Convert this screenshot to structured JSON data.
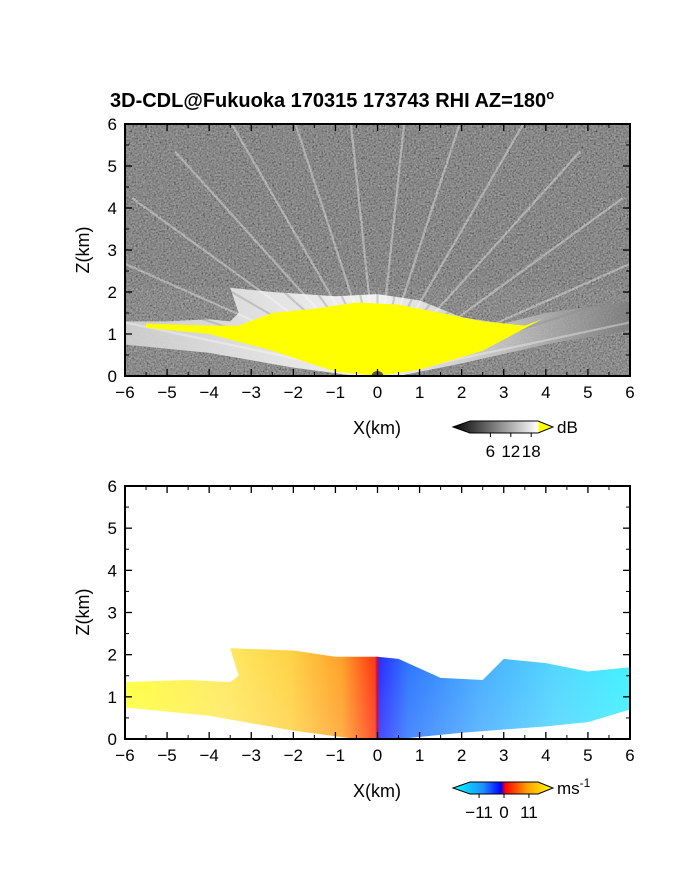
{
  "figure": {
    "title_main": "3D-CDL@Fukuoka 170315 173743 RHI AZ=180",
    "title_degree": "o"
  },
  "chart_data": [
    {
      "type": "heatmap",
      "title": "3D-CDL@Fukuoka 170315 173743 RHI AZ=180°",
      "xlabel": "X(km)",
      "ylabel": "Z(km)",
      "xlim": [
        -6,
        6
      ],
      "ylim": [
        0,
        6
      ],
      "x_ticks": [
        "-6",
        "-5",
        "-4",
        "-3",
        "-2",
        "-1",
        "0",
        "1",
        "2",
        "3",
        "4",
        "5",
        "6"
      ],
      "y_ticks": [
        "0",
        "1",
        "2",
        "3",
        "4",
        "5",
        "6"
      ],
      "grid": false,
      "colorbar": {
        "label": "dB",
        "ticks": [
          "6",
          "12",
          "18"
        ],
        "range": [
          0,
          20
        ],
        "colors": [
          "#000000",
          "#ffffff",
          "#ffff00"
        ]
      },
      "echo_boundary": [
        [
          -6,
          1.3
        ],
        [
          -5,
          1.3
        ],
        [
          -4,
          1.35
        ],
        [
          -3.5,
          1.3
        ],
        [
          -3.3,
          1.5
        ],
        [
          -3.5,
          2.1
        ],
        [
          -2.5,
          2.0
        ],
        [
          -1,
          1.9
        ],
        [
          0,
          1.95
        ],
        [
          1,
          1.8
        ],
        [
          2,
          1.4
        ],
        [
          3,
          1.25
        ],
        [
          4,
          1.5
        ],
        [
          5,
          1.65
        ],
        [
          6,
          1.75
        ]
      ],
      "lower_boundary": [
        [
          -6,
          0.75
        ],
        [
          -4,
          0.55
        ],
        [
          -2,
          0.2
        ],
        [
          -0.5,
          0.0
        ],
        [
          0.5,
          0.0
        ],
        [
          2,
          0.3
        ],
        [
          4,
          0.75
        ],
        [
          6,
          1.1
        ]
      ],
      "high_snr_region": [
        [
          -5.5,
          1.25
        ],
        [
          -4,
          1.2
        ],
        [
          -3.3,
          1.2
        ],
        [
          -2.5,
          1.5
        ],
        [
          -1.5,
          1.6
        ],
        [
          -0.5,
          1.75
        ],
        [
          0.5,
          1.7
        ],
        [
          1.5,
          1.5
        ],
        [
          2.5,
          1.3
        ],
        [
          3.5,
          1.2
        ],
        [
          3.9,
          1.35
        ],
        [
          2.5,
          0.6
        ],
        [
          1,
          0.15
        ],
        [
          0,
          0
        ],
        [
          -1,
          0.1
        ],
        [
          -2.5,
          0.6
        ],
        [
          -4,
          1.0
        ],
        [
          -5.5,
          1.15
        ]
      ]
    },
    {
      "type": "heatmap",
      "title": "",
      "xlabel": "X(km)",
      "ylabel": "Z(km)",
      "xlim": [
        -6,
        6
      ],
      "ylim": [
        0,
        6
      ],
      "x_ticks": [
        "-6",
        "-5",
        "-4",
        "-3",
        "-2",
        "-1",
        "0",
        "1",
        "2",
        "3",
        "4",
        "5",
        "6"
      ],
      "y_ticks": [
        "0",
        "1",
        "2",
        "3",
        "4",
        "5",
        "6"
      ],
      "grid": false,
      "colorbar": {
        "label": "ms",
        "label_exponent": "-1",
        "ticks": [
          "-11",
          "0",
          "11"
        ],
        "range": [
          -15,
          15
        ],
        "colors": [
          "#00ffff",
          "#0000ff",
          "#ff0000",
          "#ffff00"
        ]
      },
      "echo_boundary": [
        [
          -6,
          1.35
        ],
        [
          -4.5,
          1.4
        ],
        [
          -3.5,
          1.35
        ],
        [
          -3.3,
          1.5
        ],
        [
          -3.5,
          2.15
        ],
        [
          -2,
          2.1
        ],
        [
          -1,
          1.95
        ],
        [
          0,
          1.95
        ],
        [
          0.5,
          1.9
        ],
        [
          1.5,
          1.45
        ],
        [
          2.5,
          1.4
        ],
        [
          3,
          1.9
        ],
        [
          4,
          1.8
        ],
        [
          5,
          1.6
        ],
        [
          6,
          1.7
        ]
      ],
      "lower_boundary": [
        [
          -6,
          0.75
        ],
        [
          -4,
          0.55
        ],
        [
          -2,
          0.2
        ],
        [
          -0.5,
          0.0
        ],
        [
          0.5,
          0.0
        ],
        [
          2,
          0.15
        ],
        [
          4,
          0.3
        ],
        [
          5,
          0.4
        ],
        [
          6,
          0.7
        ]
      ],
      "velocity_profile": [
        {
          "x": -5,
          "velocity": 12
        },
        {
          "x": -3,
          "velocity": 11
        },
        {
          "x": -1,
          "velocity": 7
        },
        {
          "x": -0.1,
          "velocity": 0
        },
        {
          "x": 0.1,
          "velocity": -2
        },
        {
          "x": 1,
          "velocity": -5
        },
        {
          "x": 2,
          "velocity": -8
        },
        {
          "x": 3,
          "velocity": -10
        },
        {
          "x": 4,
          "velocity": -11
        },
        {
          "x": 5,
          "velocity": -11
        },
        {
          "x": 6,
          "velocity": -12
        }
      ]
    }
  ]
}
